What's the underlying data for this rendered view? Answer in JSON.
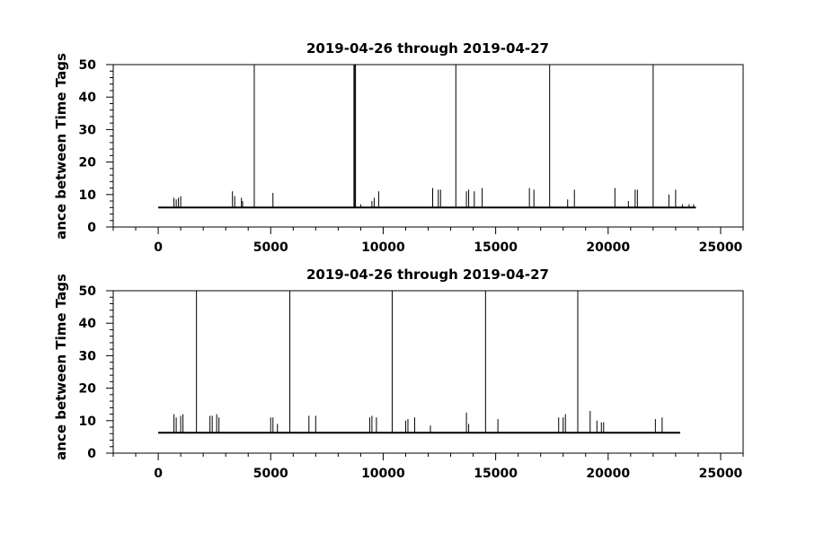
{
  "chart_data": [
    {
      "type": "line",
      "title": "2019-04-26 through 2019-04-27",
      "ylabel": "ance between Time Tags",
      "xlabel": "",
      "xlim": [
        -2000,
        26000
      ],
      "ylim": [
        0,
        50
      ],
      "x_ticks": [
        0,
        5000,
        10000,
        15000,
        20000,
        25000
      ],
      "x_tick_labels": [
        "0",
        "5000",
        "10000",
        "15000",
        "20000",
        "25000"
      ],
      "y_ticks": [
        0,
        10,
        20,
        30,
        40,
        50
      ],
      "y_tick_labels": [
        "0",
        "10",
        "20",
        "30",
        "40",
        "50"
      ],
      "grid": false,
      "series": [
        {
          "baseline": {
            "x": [
              0,
              23900
            ],
            "y": 6
          },
          "spikes": [
            {
              "x": 700,
              "y": 9
            },
            {
              "x": 800,
              "y": 8.5
            },
            {
              "x": 900,
              "y": 9
            },
            {
              "x": 1000,
              "y": 9.5
            },
            {
              "x": 3300,
              "y": 11
            },
            {
              "x": 3400,
              "y": 9.5
            },
            {
              "x": 3700,
              "y": 9
            },
            {
              "x": 3750,
              "y": 8
            },
            {
              "x": 4270,
              "y": 50
            },
            {
              "x": 5100,
              "y": 10.5
            },
            {
              "x": 8700,
              "y": 50
            },
            {
              "x": 8740,
              "y": 50
            },
            {
              "x": 8770,
              "y": 50
            },
            {
              "x": 9000,
              "y": 7
            },
            {
              "x": 9500,
              "y": 8
            },
            {
              "x": 9600,
              "y": 9
            },
            {
              "x": 9800,
              "y": 11
            },
            {
              "x": 12200,
              "y": 12
            },
            {
              "x": 12450,
              "y": 11.5
            },
            {
              "x": 12550,
              "y": 11.5
            },
            {
              "x": 13230,
              "y": 50
            },
            {
              "x": 13700,
              "y": 11
            },
            {
              "x": 13800,
              "y": 11.5
            },
            {
              "x": 14050,
              "y": 11
            },
            {
              "x": 14400,
              "y": 12
            },
            {
              "x": 16500,
              "y": 12
            },
            {
              "x": 16700,
              "y": 11.5
            },
            {
              "x": 17400,
              "y": 50
            },
            {
              "x": 18200,
              "y": 8.5
            },
            {
              "x": 18500,
              "y": 11.5
            },
            {
              "x": 20300,
              "y": 12
            },
            {
              "x": 20900,
              "y": 8
            },
            {
              "x": 21200,
              "y": 11.5
            },
            {
              "x": 21300,
              "y": 11.5
            },
            {
              "x": 22000,
              "y": 50
            },
            {
              "x": 22700,
              "y": 10
            },
            {
              "x": 23000,
              "y": 11.5
            },
            {
              "x": 23300,
              "y": 7
            },
            {
              "x": 23600,
              "y": 7
            },
            {
              "x": 23800,
              "y": 7
            }
          ]
        }
      ]
    },
    {
      "type": "line",
      "title": "2019-04-26 through 2019-04-27",
      "ylabel": "ance between Time Tags",
      "xlabel": "",
      "xlim": [
        -2000,
        26000
      ],
      "ylim": [
        0,
        50
      ],
      "x_ticks": [
        0,
        5000,
        10000,
        15000,
        20000,
        25000
      ],
      "x_tick_labels": [
        "0",
        "5000",
        "10000",
        "15000",
        "20000",
        "25000"
      ],
      "y_ticks": [
        0,
        10,
        20,
        30,
        40,
        50
      ],
      "y_tick_labels": [
        "0",
        "10",
        "20",
        "30",
        "40",
        "50"
      ],
      "grid": false,
      "series": [
        {
          "baseline": {
            "x": [
              0,
              23200
            ],
            "y": 6.3
          },
          "spikes": [
            {
              "x": 700,
              "y": 12
            },
            {
              "x": 800,
              "y": 11
            },
            {
              "x": 1000,
              "y": 11.5
            },
            {
              "x": 1100,
              "y": 12
            },
            {
              "x": 1700,
              "y": 50
            },
            {
              "x": 2300,
              "y": 11.5
            },
            {
              "x": 2400,
              "y": 11.5
            },
            {
              "x": 2600,
              "y": 12
            },
            {
              "x": 2700,
              "y": 11
            },
            {
              "x": 5000,
              "y": 11
            },
            {
              "x": 5100,
              "y": 11
            },
            {
              "x": 5300,
              "y": 9
            },
            {
              "x": 5850,
              "y": 50
            },
            {
              "x": 6700,
              "y": 11.5
            },
            {
              "x": 7000,
              "y": 11.5
            },
            {
              "x": 9400,
              "y": 11
            },
            {
              "x": 9500,
              "y": 11.5
            },
            {
              "x": 9700,
              "y": 11
            },
            {
              "x": 10400,
              "y": 50
            },
            {
              "x": 11000,
              "y": 10
            },
            {
              "x": 11100,
              "y": 10.5
            },
            {
              "x": 11400,
              "y": 11
            },
            {
              "x": 12100,
              "y": 8.5
            },
            {
              "x": 13700,
              "y": 12.5
            },
            {
              "x": 13800,
              "y": 9
            },
            {
              "x": 14550,
              "y": 50
            },
            {
              "x": 15100,
              "y": 10.5
            },
            {
              "x": 17800,
              "y": 11
            },
            {
              "x": 18000,
              "y": 11
            },
            {
              "x": 18100,
              "y": 12
            },
            {
              "x": 18650,
              "y": 50
            },
            {
              "x": 19200,
              "y": 13
            },
            {
              "x": 19500,
              "y": 10
            },
            {
              "x": 19700,
              "y": 9.5
            },
            {
              "x": 19800,
              "y": 9.5
            },
            {
              "x": 22100,
              "y": 10.5
            },
            {
              "x": 22400,
              "y": 11
            }
          ]
        }
      ]
    }
  ]
}
